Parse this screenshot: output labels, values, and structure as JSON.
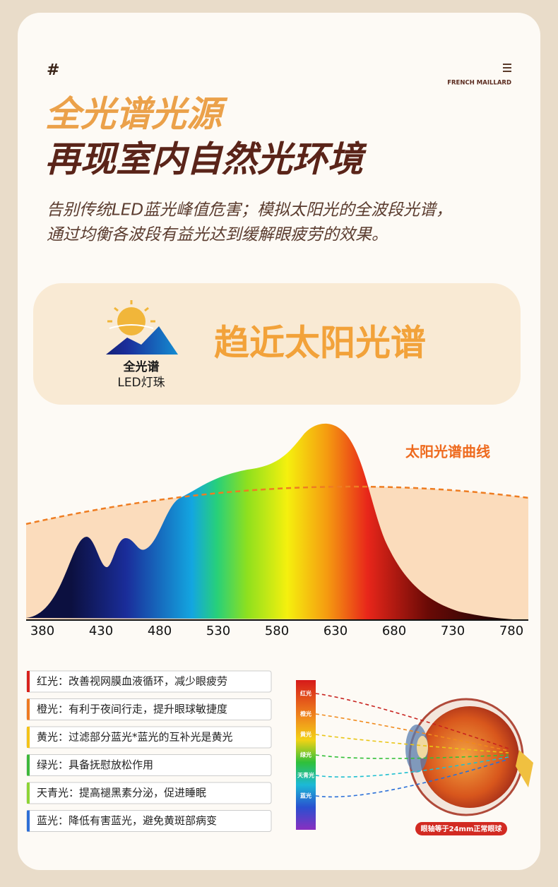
{
  "header": {
    "symbol": "#",
    "brand": "FRENCH MAILLARD"
  },
  "title": {
    "line1": "全光谱光源",
    "line2": "再现室内自然光环境"
  },
  "description": [
    "告别传统LED蓝光峰值危害；模拟太阳光的全波段光谱，",
    "通过均衡各波段有益光达到缓解眼疲劳的效果。"
  ],
  "banner": {
    "badge_title": "全光谱",
    "badge_subtitle": "LED灯珠",
    "headline": "趋近太阳光谱"
  },
  "chart_data": {
    "type": "spectrum",
    "curve_label": "太阳光谱曲线",
    "xlim": [
      380,
      780
    ],
    "xticks": [
      380,
      430,
      480,
      530,
      580,
      630,
      680,
      730,
      780
    ]
  },
  "benefits": [
    {
      "label": "红光：改善视网膜血液循环，减少眼疲劳",
      "color": "#d8221c"
    },
    {
      "label": "橙光：有利于夜间行走，提升眼球敏捷度",
      "color": "#ee7a22"
    },
    {
      "label": "黄光：过滤部分蓝光*蓝光的互补光是黄光",
      "color": "#f4c318"
    },
    {
      "label": "绿光：具备抚慰放松作用",
      "color": "#3fb83a"
    },
    {
      "label": "天青光：提高褪黑素分泌，促进睡眠",
      "color": "#8fd436"
    },
    {
      "label": "蓝光：降低有害蓝光，避免黄斑部病变",
      "color": "#2f6fd6"
    }
  ],
  "eye_diagram": {
    "bands": [
      {
        "label": "红光",
        "color": "#c8231f"
      },
      {
        "label": "橙光",
        "color": "#f08a1c"
      },
      {
        "label": "黄光",
        "color": "#e9c515"
      },
      {
        "label": "绿光",
        "color": "#34c03a"
      },
      {
        "label": "天青光",
        "color": "#1fbfd0"
      },
      {
        "label": "蓝光",
        "color": "#2a6fd8"
      }
    ],
    "caption": "眼轴等于24mm正常眼球"
  }
}
